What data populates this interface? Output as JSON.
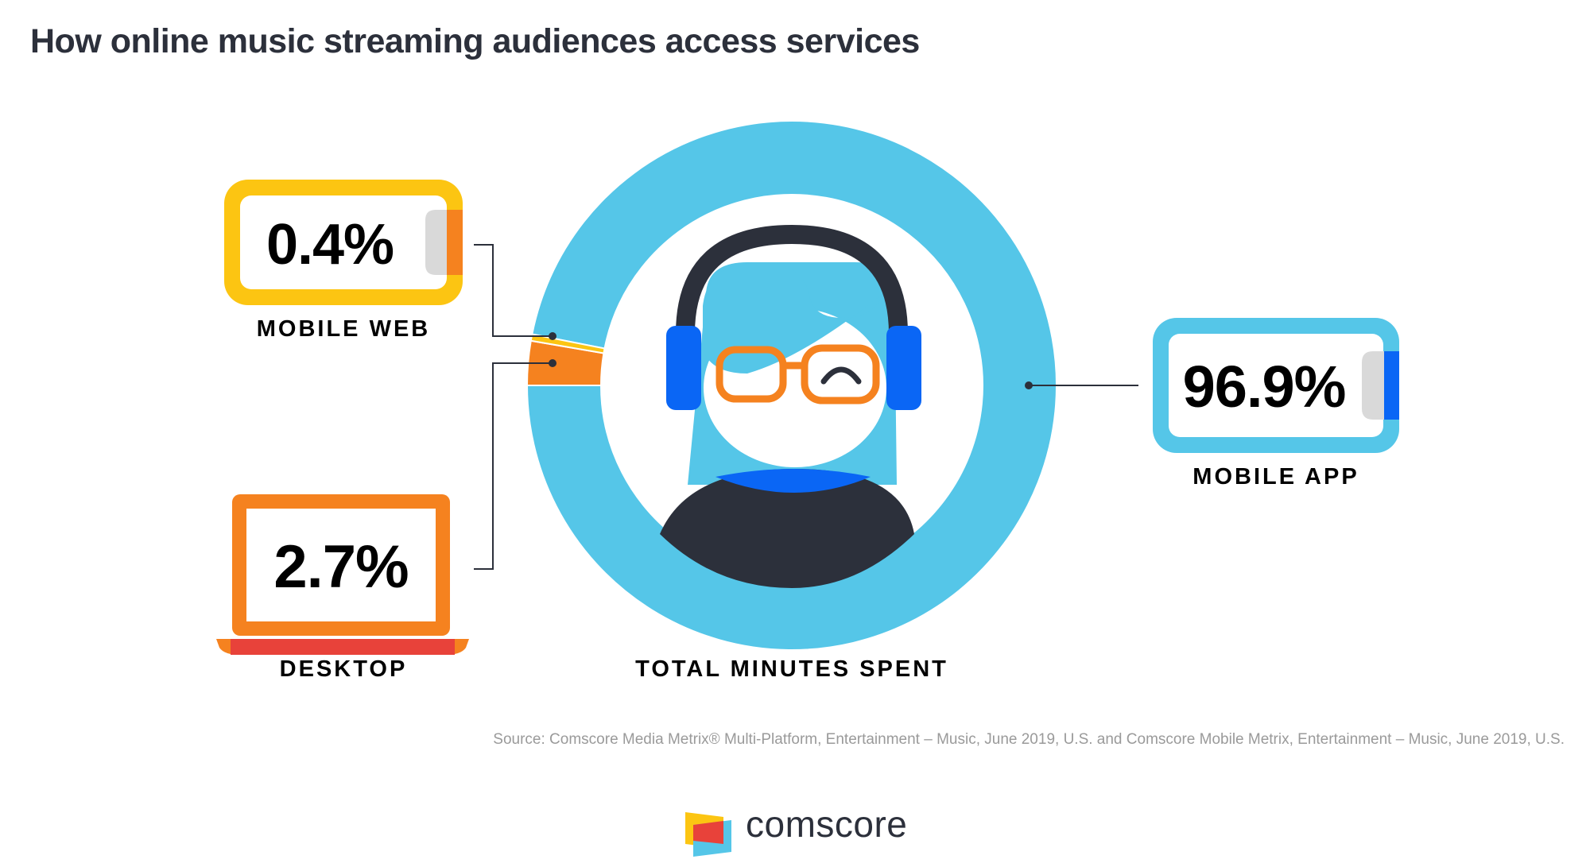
{
  "title": "How online music streaming audiences access services",
  "chart_data": {
    "type": "pie",
    "center_label": "TOTAL MINUTES SPENT",
    "categories": [
      "MOBILE APP",
      "DESKTOP",
      "MOBILE WEB"
    ],
    "values": [
      96.9,
      2.7,
      0.4
    ],
    "value_labels": [
      "96.9%",
      "2.7%",
      "0.4%"
    ],
    "colors": [
      "#55c6e8",
      "#f5821f",
      "#fcc512"
    ]
  },
  "device_colors": {
    "phone_frame_web": "#fcc512",
    "phone_frame_app": "#55c6e8",
    "laptop_frame": "#f5821f",
    "laptop_base": "#e8423a",
    "headphones": "#2c303b",
    "earcups": "#0a66f5",
    "glasses": "#f5821f"
  },
  "icons": [
    "mobile-phone-icon",
    "laptop-icon",
    "headphones-listener-icon",
    "comscore-logo-icon"
  ],
  "source": "Source: Comscore Media Metrix® Multi-Platform, Entertainment – Music, June 2019, U.S. and Comscore Mobile Metrix, Entertainment – Music, June 2019, U.S.",
  "brand": "comscore"
}
